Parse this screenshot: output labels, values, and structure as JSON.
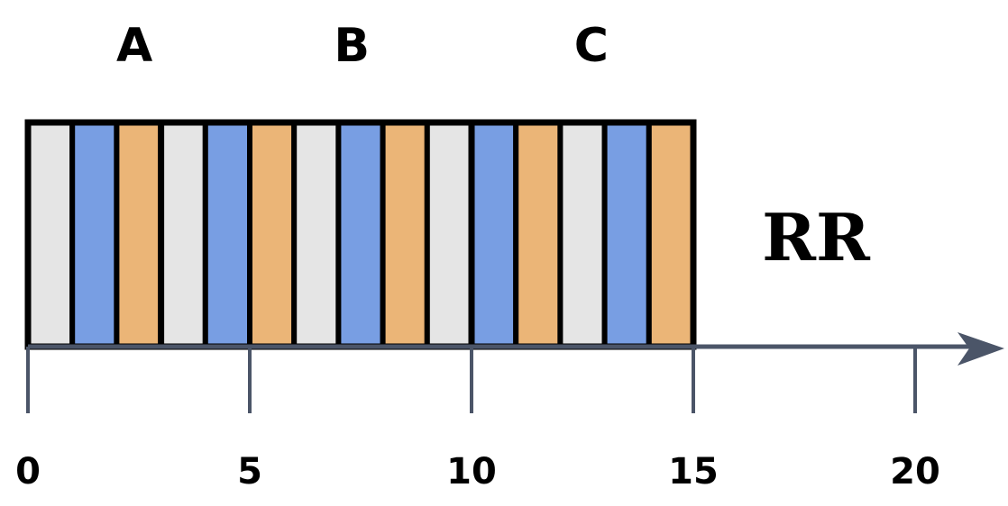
{
  "title": "RR",
  "process_labels": [
    {
      "text": "A",
      "at": 2.4
    },
    {
      "text": "B",
      "at": 7.3
    },
    {
      "text": "C",
      "at": 12.7
    }
  ],
  "colors": {
    "A": "#e5e5e5",
    "B": "#789ee3",
    "C": "#ebb577",
    "axis": "#4b5568",
    "outline": "#000000"
  },
  "axis": {
    "min": 0,
    "max": 20,
    "ticks": [
      0,
      5,
      10,
      15,
      20
    ],
    "tick_labels": [
      "0",
      "5",
      "10",
      "15",
      "20"
    ]
  },
  "slices": [
    {
      "process": "A",
      "start": 0,
      "end": 1
    },
    {
      "process": "B",
      "start": 1,
      "end": 2
    },
    {
      "process": "C",
      "start": 2,
      "end": 3
    },
    {
      "process": "A",
      "start": 3,
      "end": 4
    },
    {
      "process": "B",
      "start": 4,
      "end": 5
    },
    {
      "process": "C",
      "start": 5,
      "end": 6
    },
    {
      "process": "A",
      "start": 6,
      "end": 7
    },
    {
      "process": "B",
      "start": 7,
      "end": 8
    },
    {
      "process": "C",
      "start": 8,
      "end": 9
    },
    {
      "process": "A",
      "start": 9,
      "end": 10
    },
    {
      "process": "B",
      "start": 10,
      "end": 11
    },
    {
      "process": "C",
      "start": 11,
      "end": 12
    },
    {
      "process": "A",
      "start": 12,
      "end": 13
    },
    {
      "process": "B",
      "start": 13,
      "end": 14
    },
    {
      "process": "C",
      "start": 14,
      "end": 15
    }
  ],
  "boundaries": [
    3,
    10
  ]
}
